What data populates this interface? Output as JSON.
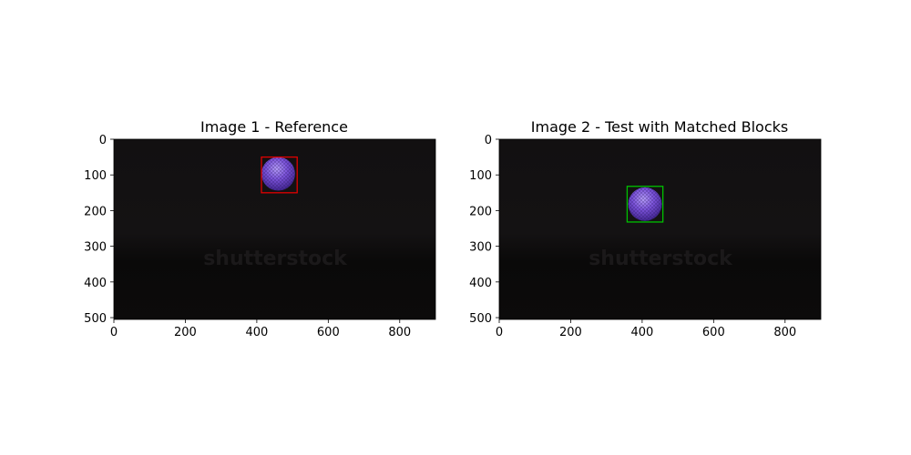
{
  "chart_data": [
    {
      "type": "image",
      "title": "Image 1 - Reference",
      "xlim": [
        0,
        900
      ],
      "ylim": [
        505,
        0
      ],
      "x_ticks": [
        0,
        200,
        400,
        600,
        800
      ],
      "y_ticks": [
        0,
        100,
        200,
        300,
        400,
        500
      ],
      "watermark": "shutterstock",
      "ball": {
        "cx": 460,
        "cy": 97,
        "r": 47
      },
      "box": {
        "x0": 413,
        "y0": 50,
        "x1": 513,
        "y1": 150,
        "color": "#e00000"
      }
    },
    {
      "type": "image",
      "title": "Image 2 - Test with Matched Blocks",
      "xlim": [
        0,
        900
      ],
      "ylim": [
        505,
        0
      ],
      "x_ticks": [
        0,
        200,
        400,
        600,
        800
      ],
      "y_ticks": [
        0,
        100,
        200,
        300,
        400,
        500
      ],
      "watermark": "shutterstock",
      "ball": {
        "cx": 408,
        "cy": 182,
        "r": 47
      },
      "box": {
        "x0": 358,
        "y0": 132,
        "x1": 458,
        "y1": 232,
        "color": "#00c000"
      }
    }
  ]
}
